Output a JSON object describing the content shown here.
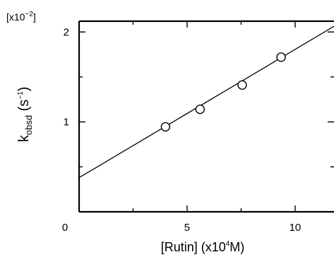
{
  "chart_data": {
    "type": "scatter",
    "multiplier": {
      "base": "[x10",
      "exp": "−2",
      "close": "]"
    },
    "xlabel": {
      "pre": "[Rutin] (x10",
      "sup": "4",
      "post": "M)"
    },
    "ylabel": {
      "base": "k",
      "sub": "obsd",
      "mid": " (s",
      "sup": "−1",
      "post": ")"
    },
    "xlim": [
      0,
      11.8
    ],
    "ylim": [
      0,
      2.12
    ],
    "x_ticks": [
      {
        "value": 0,
        "label": "0"
      },
      {
        "value": 5,
        "label": "5"
      },
      {
        "value": 10,
        "label": "10"
      }
    ],
    "y_ticks": [
      {
        "value": 1,
        "label": "1"
      },
      {
        "value": 2,
        "label": "2"
      }
    ],
    "points": [
      {
        "x": 4.0,
        "y": 0.945
      },
      {
        "x": 5.6,
        "y": 1.14
      },
      {
        "x": 7.55,
        "y": 1.41
      },
      {
        "x": 9.35,
        "y": 1.72
      }
    ],
    "fit_line": {
      "intercept": 0.38,
      "slope": 0.1426
    },
    "grid": false,
    "legend": "none"
  }
}
